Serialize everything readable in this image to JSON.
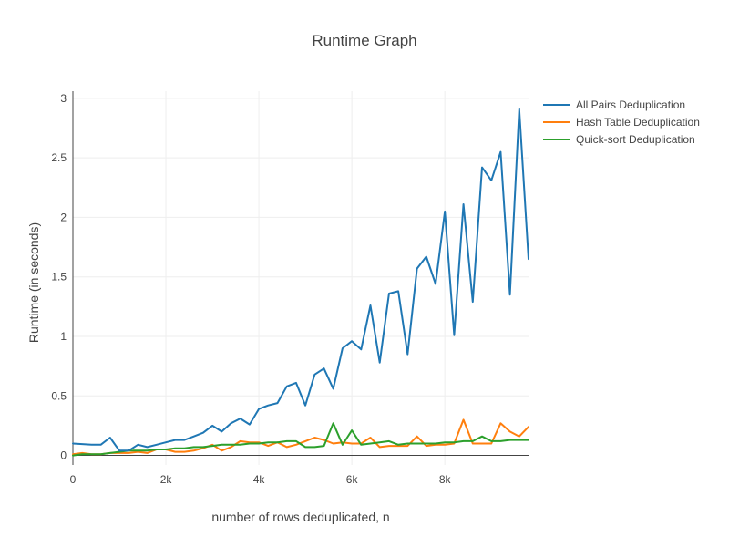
{
  "chart_data": {
    "type": "line",
    "title": "Runtime Graph",
    "xlabel": "number of rows deduplicated, n",
    "ylabel": "Runtime (in seconds)",
    "xlim": [
      0,
      9800
    ],
    "ylim": [
      -0.08,
      3.06
    ],
    "x_ticks": [
      0,
      2000,
      4000,
      6000,
      8000
    ],
    "x_tick_labels": [
      "0",
      "2k",
      "4k",
      "6k",
      "8k"
    ],
    "y_ticks": [
      0,
      0.5,
      1,
      1.5,
      2,
      2.5,
      3
    ],
    "y_tick_labels": [
      "0",
      "0.5",
      "1",
      "1.5",
      "2",
      "2.5",
      "3"
    ],
    "grid": true,
    "legend_position": "top-right",
    "x": [
      0,
      200,
      400,
      600,
      800,
      1000,
      1200,
      1400,
      1600,
      1800,
      2000,
      2200,
      2400,
      2600,
      2800,
      3000,
      3200,
      3400,
      3600,
      3800,
      4000,
      4200,
      4400,
      4600,
      4800,
      5000,
      5200,
      5400,
      5600,
      5800,
      6000,
      6200,
      6400,
      6600,
      6800,
      7000,
      7200,
      7400,
      7600,
      7800,
      8000,
      8200,
      8400,
      8600,
      8800,
      9000,
      9200,
      9400,
      9600,
      9800
    ],
    "series": [
      {
        "name": "All Pairs Deduplication",
        "color": "#1f77b4",
        "values": [
          0.1,
          0.095,
          0.09,
          0.09,
          0.15,
          0.04,
          0.04,
          0.09,
          0.07,
          0.09,
          0.11,
          0.13,
          0.13,
          0.16,
          0.19,
          0.25,
          0.2,
          0.27,
          0.31,
          0.26,
          0.39,
          0.42,
          0.44,
          0.58,
          0.61,
          0.42,
          0.68,
          0.73,
          0.56,
          0.9,
          0.96,
          0.89,
          1.26,
          0.78,
          1.36,
          1.38,
          0.85,
          1.57,
          1.67,
          1.44,
          2.05,
          1.01,
          2.11,
          1.29,
          2.42,
          2.31,
          2.55,
          1.35,
          2.91,
          1.65
        ]
      },
      {
        "name": "Hash Table Deduplication",
        "color": "#ff7f0e",
        "values": [
          0.01,
          0.02,
          0.01,
          0.01,
          0.02,
          0.02,
          0.02,
          0.03,
          0.02,
          0.05,
          0.05,
          0.03,
          0.03,
          0.04,
          0.06,
          0.09,
          0.04,
          0.07,
          0.12,
          0.11,
          0.11,
          0.08,
          0.11,
          0.07,
          0.09,
          0.12,
          0.15,
          0.13,
          0.1,
          0.11,
          0.1,
          0.1,
          0.15,
          0.07,
          0.08,
          0.08,
          0.08,
          0.16,
          0.08,
          0.09,
          0.09,
          0.1,
          0.3,
          0.1,
          0.1,
          0.1,
          0.27,
          0.2,
          0.16,
          0.24
        ]
      },
      {
        "name": "Quick-sort Deduplication",
        "color": "#2ca02c",
        "values": [
          0.0,
          0.01,
          0.01,
          0.01,
          0.02,
          0.03,
          0.04,
          0.04,
          0.04,
          0.05,
          0.05,
          0.06,
          0.06,
          0.07,
          0.07,
          0.08,
          0.09,
          0.09,
          0.09,
          0.1,
          0.1,
          0.11,
          0.11,
          0.12,
          0.12,
          0.07,
          0.07,
          0.08,
          0.27,
          0.09,
          0.21,
          0.09,
          0.1,
          0.11,
          0.12,
          0.09,
          0.1,
          0.1,
          0.1,
          0.1,
          0.11,
          0.11,
          0.12,
          0.12,
          0.16,
          0.12,
          0.12,
          0.13,
          0.13,
          0.13
        ]
      }
    ]
  }
}
